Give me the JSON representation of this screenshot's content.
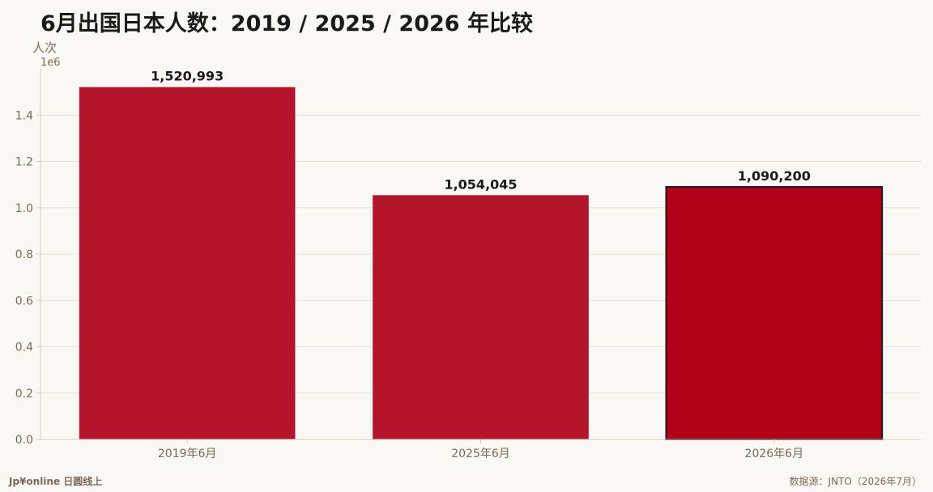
{
  "colors": {
    "bar": "#b5152b",
    "bar_highlight": "#b10017",
    "highlight_border": "#1a1a1a",
    "grid": "#eaded8",
    "axis": "#d6cabc",
    "text_muted": "#7a6a55"
  },
  "footer": {
    "brand": "Jp¥online 日圆线上",
    "source": "数据源：JNTO（2026年7月）"
  },
  "chart_data": {
    "type": "bar",
    "title": "6月出国日本人数：2019 / 2025 / 2026 年比较",
    "ylabel": "人次",
    "y_offset_label": "1e6",
    "xlabel": "",
    "categories": [
      "2019年6月",
      "2025年6月",
      "2026年6月"
    ],
    "values": [
      1520993,
      1054045,
      1090200
    ],
    "value_labels": [
      "1,520,993",
      "1,054,045",
      "1,090,200"
    ],
    "highlight_index": 2,
    "ylim": [
      0,
      1600000
    ],
    "yticks": [
      0,
      200000,
      400000,
      600000,
      800000,
      1000000,
      1200000,
      1400000
    ],
    "ytick_labels": [
      "0.0",
      "0.2",
      "0.4",
      "0.6",
      "0.8",
      "1.0",
      "1.2",
      "1.4"
    ],
    "grid": true,
    "legend": "none"
  }
}
